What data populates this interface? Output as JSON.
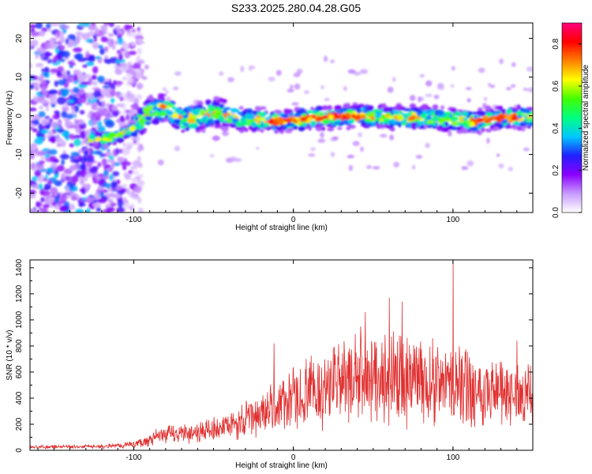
{
  "title": "S233.2025.280.04.28.G05",
  "chart_data": [
    {
      "type": "heatmap",
      "xlabel": "Height of straight line (km)",
      "ylabel": "Frequency (Hz)",
      "xlim": [
        -165,
        150
      ],
      "ylim": [
        -25,
        24
      ],
      "x_ticks": [
        -100,
        0,
        100
      ],
      "x_tick_labels": [
        "-100",
        "0",
        "100"
      ],
      "y_ticks": [
        -20,
        -10,
        0,
        10,
        20
      ],
      "y_tick_labels": [
        "-20",
        "-10",
        "0",
        "10",
        "20"
      ],
      "ridge": {
        "x": [
          -125,
          -110,
          -100,
          -90,
          -80,
          -70,
          -60,
          -50,
          -40,
          -30,
          -20,
          -10,
          0,
          20,
          40,
          60,
          80,
          100,
          115,
          130,
          148
        ],
        "y": [
          -6,
          -5.5,
          -3,
          1,
          2,
          -1,
          -0.5,
          1,
          0,
          -1,
          -1,
          -1.5,
          -1,
          -0.5,
          0,
          -0.5,
          -0.5,
          -1,
          -1.5,
          -0.5,
          -0.5
        ]
      },
      "colorbar": {
        "label": "Normalized spectral amplitude",
        "range": [
          0.0,
          0.9
        ],
        "ticks": [
          0.0,
          0.2,
          0.4,
          0.6,
          0.8
        ],
        "tick_labels": [
          "0.0",
          "0.2",
          "0.4",
          "0.6",
          "0.8"
        ],
        "colors": [
          "#ffffff",
          "#c89bff",
          "#8a00ff",
          "#2020ff",
          "#00c8ff",
          "#00ff80",
          "#40ff00",
          "#ffff00",
          "#ff8000",
          "#ff0000",
          "#ff0080"
        ]
      }
    },
    {
      "type": "line",
      "xlabel": "Height of straight line (km)",
      "ylabel": "SNR (10 * v/v)",
      "xlim": [
        -165,
        150
      ],
      "ylim": [
        0,
        1460
      ],
      "x_ticks": [
        -100,
        0,
        100
      ],
      "x_tick_labels": [
        "-100",
        "0",
        "100"
      ],
      "y_ticks": [
        0,
        200,
        400,
        600,
        800,
        1000,
        1200,
        1400
      ],
      "y_tick_labels": [
        "0",
        "200",
        "400",
        "600",
        "800",
        "1000",
        "1200",
        "1400"
      ],
      "color": "#e03030",
      "series": [
        {
          "name": "SNR",
          "envelope_x": [
            -165,
            -120,
            -100,
            -90,
            -80,
            -60,
            -40,
            -30,
            -20,
            -10,
            0,
            20,
            40,
            60,
            80,
            100,
            120,
            140,
            150
          ],
          "envelope_mean": [
            25,
            30,
            45,
            80,
            120,
            140,
            180,
            230,
            280,
            340,
            380,
            480,
            560,
            560,
            540,
            500,
            460,
            430,
            420
          ],
          "envelope_spread": [
            12,
            15,
            25,
            50,
            70,
            80,
            100,
            140,
            170,
            190,
            230,
            300,
            330,
            340,
            330,
            300,
            270,
            240,
            220
          ],
          "peaks": [
            {
              "x": -12,
              "y": 820
            },
            {
              "x": 45,
              "y": 1060
            },
            {
              "x": 60,
              "y": 1170
            },
            {
              "x": 68,
              "y": 1140
            },
            {
              "x": 100,
              "y": 1460
            },
            {
              "x": 140,
              "y": 840
            }
          ]
        }
      ]
    }
  ]
}
